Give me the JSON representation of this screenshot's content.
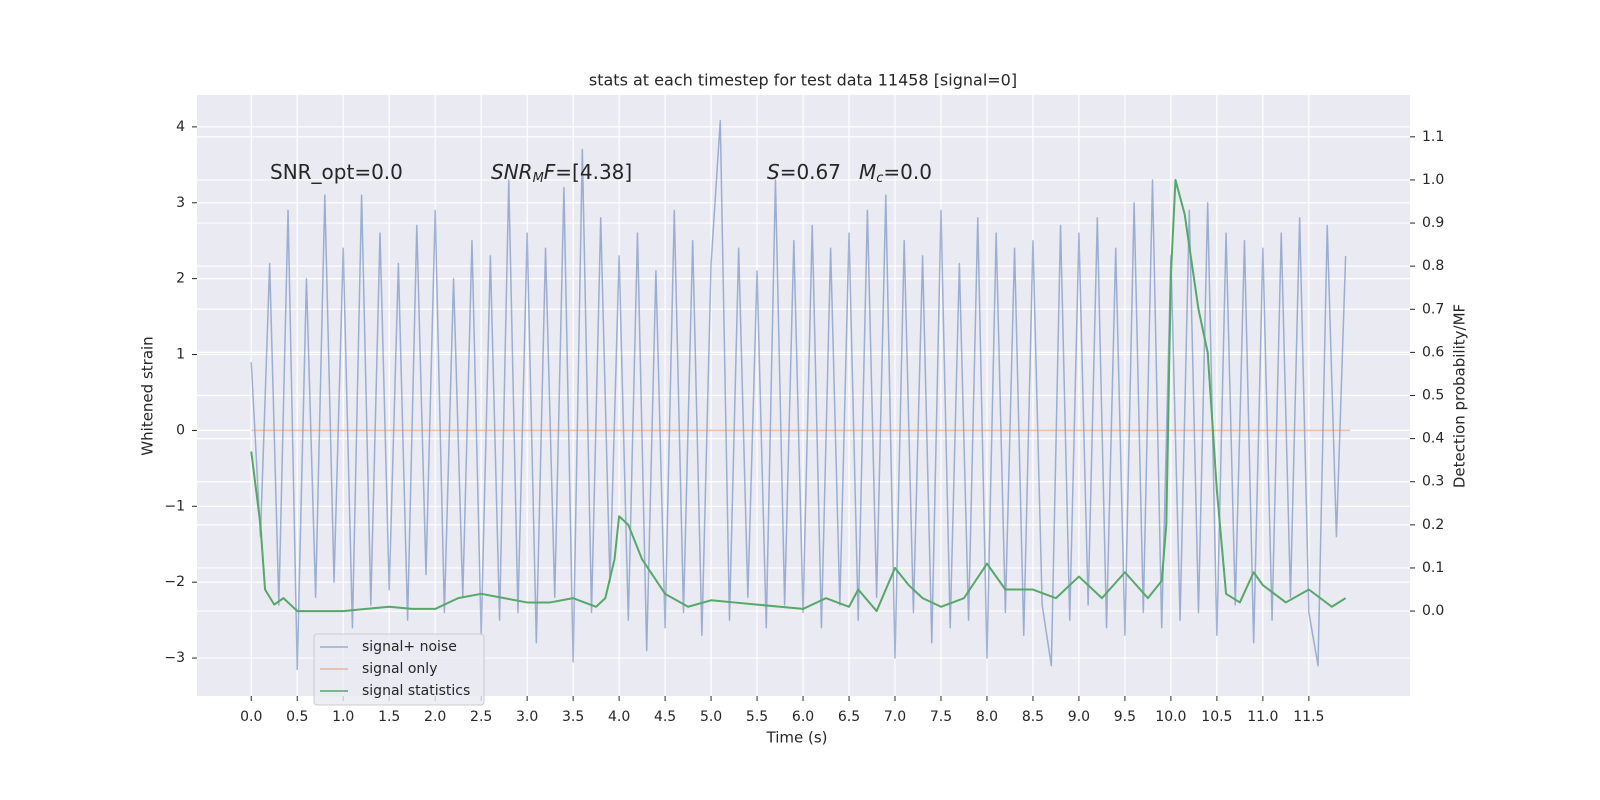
{
  "chart_data": {
    "type": "line",
    "title": "stats at each timestep for test data 11458 [signal=0]",
    "xlabel": "Time (s)",
    "ylabel": "Whitened strain",
    "y2label": "Detection probability/MF",
    "annotations": [
      [
        "SNR_opt=0.0"
      ],
      [
        "SNR",
        "M",
        "F",
        "=[4.38]"
      ],
      [
        "S",
        "=0.67"
      ],
      [
        "M",
        "c",
        "=0.0"
      ]
    ],
    "xlim": [
      -0.59,
      12.6
    ],
    "ylim": [
      -3.5,
      4.42
    ],
    "y2lim": [
      -0.197,
      1.197
    ],
    "xticks": [
      {
        "value": 0,
        "label": "0.0"
      },
      0.5,
      {
        "value": 1,
        "label": "1.0"
      },
      1.5,
      {
        "value": 2,
        "label": "2.0"
      },
      2.5,
      {
        "value": 3,
        "label": "3.0"
      },
      3.5,
      {
        "value": 4,
        "label": "4.0"
      },
      4.5,
      {
        "value": 5,
        "label": "5.0"
      },
      5.5,
      {
        "value": 6,
        "label": "6.0"
      },
      6.5,
      {
        "value": 7,
        "label": "7.0"
      },
      7.5,
      {
        "value": 8,
        "label": "8.0"
      },
      8.5,
      {
        "value": 9,
        "label": "9.0"
      },
      9.5,
      {
        "value": 10,
        "label": "10.0"
      },
      10.5,
      {
        "value": 11,
        "label": "11.0"
      },
      11.5
    ],
    "yticks": [
      {
        "value": -3,
        "label": "−3"
      },
      {
        "value": -2,
        "label": "−2"
      },
      {
        "value": -1,
        "label": "−1"
      },
      0,
      1,
      2,
      3,
      4
    ],
    "y2ticks": [
      {
        "value": 0,
        "label": "0.0"
      },
      0.1,
      0.2,
      0.3,
      0.4,
      0.5,
      0.6,
      0.7,
      0.8,
      0.9,
      {
        "value": 1,
        "label": "1.0"
      },
      1.1
    ],
    "grid": true,
    "legend": "lower left",
    "series": [
      {
        "name": "signal+ noise",
        "color": "#4c72b0",
        "x": [
          0.0,
          0.1,
          0.2,
          0.3,
          0.4,
          0.5,
          0.6,
          0.7,
          0.8,
          0.9,
          1.0,
          1.1,
          1.2,
          1.3,
          1.4,
          1.5,
          1.6,
          1.7,
          1.8,
          1.9,
          2.0,
          2.1,
          2.2,
          2.3,
          2.4,
          2.5,
          2.6,
          2.7,
          2.8,
          2.9,
          3.0,
          3.1,
          3.2,
          3.3,
          3.4,
          3.5,
          3.6,
          3.7,
          3.8,
          3.9,
          4.0,
          4.1,
          4.2,
          4.3,
          4.4,
          4.5,
          4.6,
          4.7,
          4.8,
          4.9,
          5.0,
          5.1,
          5.2,
          5.3,
          5.4,
          5.5,
          5.6,
          5.7,
          5.8,
          5.9,
          6.0,
          6.1,
          6.2,
          6.3,
          6.4,
          6.5,
          6.6,
          6.7,
          6.8,
          6.9,
          7.0,
          7.1,
          7.2,
          7.3,
          7.4,
          7.5,
          7.6,
          7.7,
          7.8,
          7.9,
          8.0,
          8.1,
          8.2,
          8.3,
          8.4,
          8.5,
          8.6,
          8.7,
          8.8,
          8.9,
          9.0,
          9.1,
          9.2,
          9.3,
          9.4,
          9.5,
          9.6,
          9.7,
          9.8,
          9.9,
          10.0,
          10.1,
          10.2,
          10.3,
          10.4,
          10.5,
          10.6,
          10.7,
          10.8,
          10.9,
          11.0,
          11.1,
          11.2,
          11.3,
          11.4,
          11.5,
          11.6,
          11.7,
          11.8,
          11.9
        ],
        "values": [
          0.9,
          -1.4,
          2.2,
          -2.3,
          2.9,
          -3.15,
          2.0,
          -2.2,
          3.1,
          -2.0,
          2.4,
          -2.6,
          3.1,
          -2.3,
          2.6,
          -2.1,
          2.2,
          -2.5,
          2.7,
          -1.9,
          2.9,
          -2.4,
          2.0,
          -2.2,
          2.5,
          -2.7,
          2.3,
          -2.5,
          3.3,
          -2.4,
          2.6,
          -2.8,
          2.4,
          -2.2,
          3.2,
          -3.05,
          3.7,
          -2.4,
          2.8,
          -2.0,
          2.3,
          -2.5,
          2.6,
          -2.9,
          2.1,
          -2.6,
          2.9,
          -2.4,
          2.5,
          -2.7,
          2.2,
          4.08,
          -2.5,
          2.4,
          -2.2,
          2.1,
          -2.6,
          3.3,
          -2.3,
          2.5,
          -2.4,
          2.7,
          -2.6,
          2.4,
          -2.3,
          2.6,
          -2.5,
          2.9,
          -2.2,
          3.1,
          -3.0,
          2.5,
          -2.4,
          2.3,
          -2.8,
          2.9,
          -2.6,
          2.2,
          -2.5,
          2.8,
          -3.0,
          2.6,
          -2.4,
          2.4,
          -2.7,
          2.5,
          -2.3,
          -3.1,
          2.7,
          -2.5,
          2.6,
          -2.3,
          2.8,
          -2.6,
          2.4,
          -2.7,
          3.0,
          -2.4,
          3.3,
          -2.6,
          2.3,
          -2.5,
          2.9,
          -2.4,
          3.0,
          -2.7,
          2.6,
          -2.3,
          2.5,
          -2.8,
          2.4,
          -2.5,
          2.6,
          -2.2,
          2.8,
          -2.4,
          -3.1,
          2.7,
          -1.4,
          2.3
        ]
      },
      {
        "name": "signal only",
        "color": "#dd8452",
        "x": [
          0,
          11.95
        ],
        "values": [
          0,
          0
        ]
      },
      {
        "name": "signal statistics",
        "color": "#55a868",
        "axis": "y2",
        "x": [
          0,
          0.1,
          0.15,
          0.25,
          0.35,
          0.5,
          0.75,
          1.0,
          1.25,
          1.5,
          1.75,
          2.0,
          2.25,
          2.5,
          2.75,
          3.0,
          3.25,
          3.5,
          3.75,
          3.85,
          3.95,
          4.0,
          4.1,
          4.25,
          4.5,
          4.75,
          5.0,
          5.25,
          5.5,
          5.75,
          6.0,
          6.25,
          6.5,
          6.6,
          6.8,
          7.0,
          7.15,
          7.3,
          7.5,
          7.75,
          8.0,
          8.2,
          8.5,
          8.75,
          9.0,
          9.25,
          9.5,
          9.75,
          9.9,
          9.95,
          10.0,
          10.05,
          10.15,
          10.3,
          10.4,
          10.5,
          10.6,
          10.75,
          10.9,
          11.0,
          11.25,
          11.5,
          11.75,
          11.9
        ],
        "values": [
          0.37,
          0.2,
          0.05,
          0.015,
          0.03,
          0.0,
          0.0,
          0.0,
          0.005,
          0.01,
          0.005,
          0.005,
          0.03,
          0.04,
          0.03,
          0.02,
          0.02,
          0.03,
          0.01,
          0.03,
          0.12,
          0.22,
          0.2,
          0.12,
          0.04,
          0.01,
          0.025,
          0.02,
          0.015,
          0.01,
          0.005,
          0.03,
          0.01,
          0.05,
          0.0,
          0.1,
          0.06,
          0.03,
          0.01,
          0.03,
          0.11,
          0.05,
          0.05,
          0.03,
          0.08,
          0.03,
          0.09,
          0.03,
          0.07,
          0.2,
          0.78,
          1.0,
          0.92,
          0.7,
          0.6,
          0.28,
          0.04,
          0.02,
          0.09,
          0.06,
          0.02,
          0.05,
          0.01,
          0.03
        ]
      }
    ]
  }
}
